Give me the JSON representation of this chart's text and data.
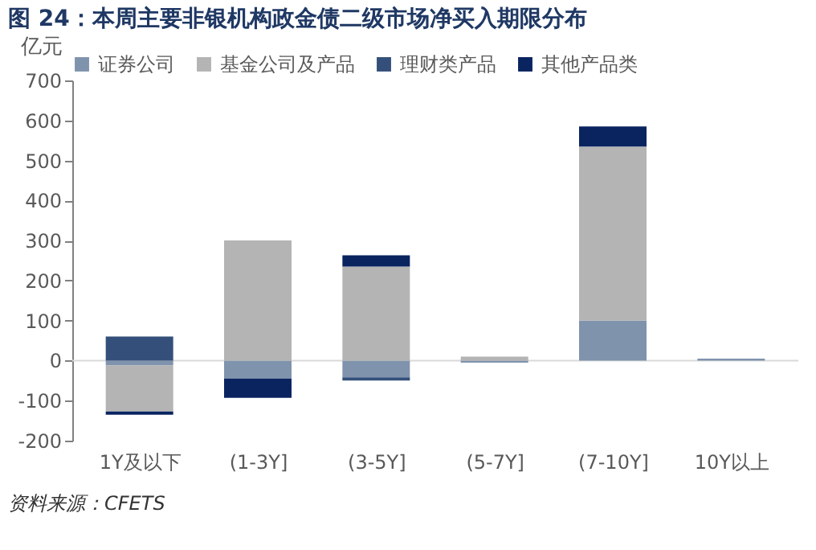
{
  "chart_data": {
    "type": "bar",
    "stacked": true,
    "title": "图 24：本周主要非银机构政金债二级市场净买入期限分布",
    "ylabel": "亿元",
    "categories": [
      "1Y及以下",
      "(1-3Y]",
      "(3-5Y]",
      "(5-7Y]",
      "(7-10Y]",
      "10Y以上"
    ],
    "series": [
      {
        "name": "证券公司",
        "color": "#7f93ad",
        "values": [
          -12,
          -45,
          -42,
          -5,
          100,
          5
        ]
      },
      {
        "name": "基金公司及产品",
        "color": "#b4b4b4",
        "values": [
          -115,
          300,
          235,
          10,
          435,
          0
        ]
      },
      {
        "name": "理财类产品",
        "color": "#34507a",
        "values": [
          60,
          0,
          -8,
          0,
          0,
          0
        ]
      },
      {
        "name": "其他产品类",
        "color": "#0a2460",
        "values": [
          -8,
          -48,
          28,
          0,
          50,
          0
        ]
      }
    ],
    "ylim": [
      -200,
      700
    ],
    "yticks": [
      -200,
      -100,
      0,
      100,
      200,
      300,
      400,
      500,
      600,
      700
    ],
    "ref_lines": [
      {
        "axis": "y",
        "value": 0,
        "color": "#d9d9d9"
      }
    ],
    "grid": false,
    "legend": "top",
    "annotations": [
      "资料来源：CFETS"
    ]
  }
}
